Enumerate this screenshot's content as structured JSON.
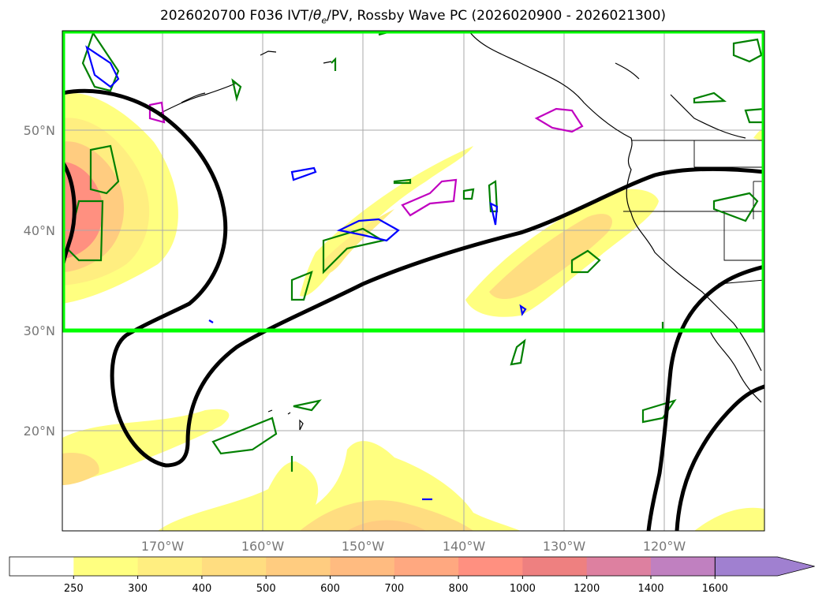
{
  "title": {
    "prefix": "2026020700 F036 IVT/",
    "theta": "θ",
    "theta_sub": "e",
    "suffix": "/PV, Rossby Wave PC (2026020900 - 2026021300)"
  },
  "lat_labels": [
    "50°N",
    "40°N",
    "30°N",
    "20°N"
  ],
  "lon_labels": [
    "170°W",
    "160°W",
    "150°W",
    "140°W",
    "130°W",
    "120°W"
  ],
  "colorbar": {
    "ticks": [
      "250",
      "300",
      "400",
      "500",
      "600",
      "700",
      "800",
      "1000",
      "1200",
      "1400",
      "1600"
    ],
    "colors": [
      "#ffffff",
      "#ffff80",
      "#ffee80",
      "#ffdd80",
      "#ffcc80",
      "#ffbb80",
      "#ffa880",
      "#ff9080",
      "#ee8080",
      "#dd80a0",
      "#c080c0",
      "#a080d0"
    ]
  },
  "colors": {
    "box": "#00ff00",
    "wave_contour": "#000000",
    "theta_contour": "#008000",
    "pv_contour_blue": "#0000ff",
    "pv_contour_magenta": "#c000c0"
  }
}
